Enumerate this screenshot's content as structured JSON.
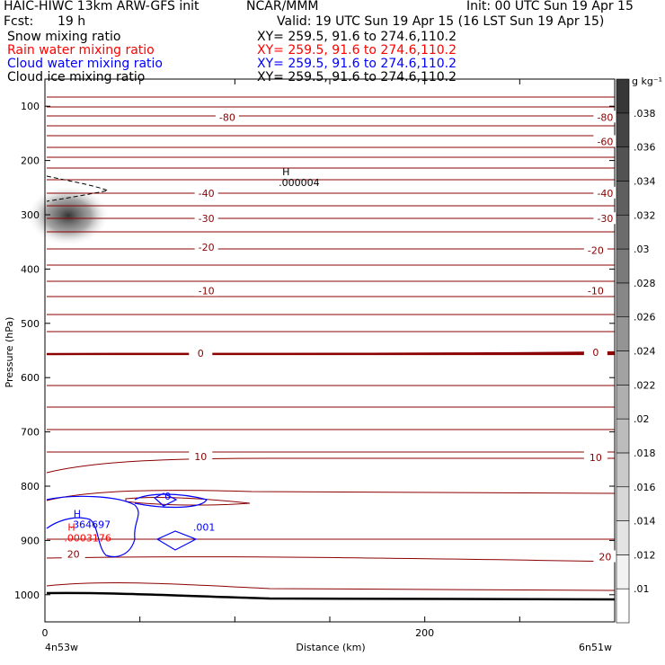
{
  "header": {
    "model": "HAIC-HIWC 13km ARW-GFS init",
    "center": "NCAR/MMM",
    "init": "Init: 00 UTC Sun 19 Apr 15",
    "fcst_label": "Fcst:",
    "fcst_value": "19 h",
    "valid": "Valid: 19 UTC Sun 19 Apr 15 (16 LST Sun 19 Apr 15)",
    "fields": [
      {
        "name": "Snow mixing ratio",
        "xy": "XY= 259.5, 91.6 to 274.6,110.2",
        "color": "#000000"
      },
      {
        "name": "Rain water mixing ratio",
        "xy": "XY= 259.5, 91.6 to 274.6,110.2",
        "color": "#ff0000"
      },
      {
        "name": "Cloud water mixing ratio",
        "xy": "XY= 259.5, 91.6 to 274.6,110.2",
        "color": "#0000ff"
      },
      {
        "name": "Cloud ice mixing ratio",
        "xy": "XY= 259.5, 91.6 to 274.6,110.2",
        "color": "#000000"
      }
    ]
  },
  "chart_data": {
    "type": "cross-section",
    "xlabel": "Distance (km)",
    "ylabel": "Pressure (hPa)",
    "x_start_label": "4n53w",
    "x_end_label": "6n51w",
    "xlim": [
      0,
      300
    ],
    "x_ticks": [
      0,
      200
    ],
    "ylim": [
      1050,
      50
    ],
    "y_ticks": [
      100,
      200,
      300,
      400,
      500,
      600,
      700,
      800,
      900,
      1000
    ],
    "colorbar": {
      "unit": "g kg⁻¹",
      "ticks": [
        ".01",
        ".012",
        ".014",
        ".016",
        ".018",
        ".02",
        ".022",
        ".024",
        ".026",
        ".028",
        ".03",
        ".032",
        ".034",
        ".036",
        ".038"
      ]
    },
    "temperature_contours": {
      "color": "#8b0000",
      "labels": [
        {
          "value": "-80",
          "x": 96,
          "p": 120
        },
        {
          "value": "-80",
          "x": 295,
          "p": 120
        },
        {
          "value": "-60",
          "x": 295,
          "p": 165
        },
        {
          "value": "-40",
          "x": 85,
          "p": 260
        },
        {
          "value": "-40",
          "x": 295,
          "p": 260
        },
        {
          "value": "-30",
          "x": 85,
          "p": 307
        },
        {
          "value": "-30",
          "x": 295,
          "p": 307
        },
        {
          "value": "-20",
          "x": 85,
          "p": 360
        },
        {
          "value": "-20",
          "x": 290,
          "p": 365
        },
        {
          "value": "-10",
          "x": 85,
          "p": 440
        },
        {
          "value": "-10",
          "x": 290,
          "p": 440
        },
        {
          "value": "0",
          "x": 82,
          "p": 555
        },
        {
          "value": "0",
          "x": 290,
          "p": 553
        },
        {
          "value": "10",
          "x": 82,
          "p": 745
        },
        {
          "value": "10",
          "x": 290,
          "p": 747
        },
        {
          "value": "20",
          "x": 15,
          "p": 925
        },
        {
          "value": "20",
          "x": 295,
          "p": 930
        }
      ]
    },
    "extrema": [
      {
        "symbol": "H",
        "value": ".000004",
        "x": 125,
        "p": 240,
        "color": "#000000"
      },
      {
        "symbol": "H",
        "value": ".364697",
        "x": 15,
        "p": 870,
        "color": "#0000ff"
      },
      {
        "symbol": "H",
        "value": ".0003176",
        "x": 12,
        "p": 895,
        "color": "#ff0000"
      }
    ],
    "cloud_water_labels": [
      {
        "value": ".001",
        "x": 78,
        "p": 875
      },
      {
        "value": "0",
        "x": 63,
        "p": 818
      }
    ]
  }
}
